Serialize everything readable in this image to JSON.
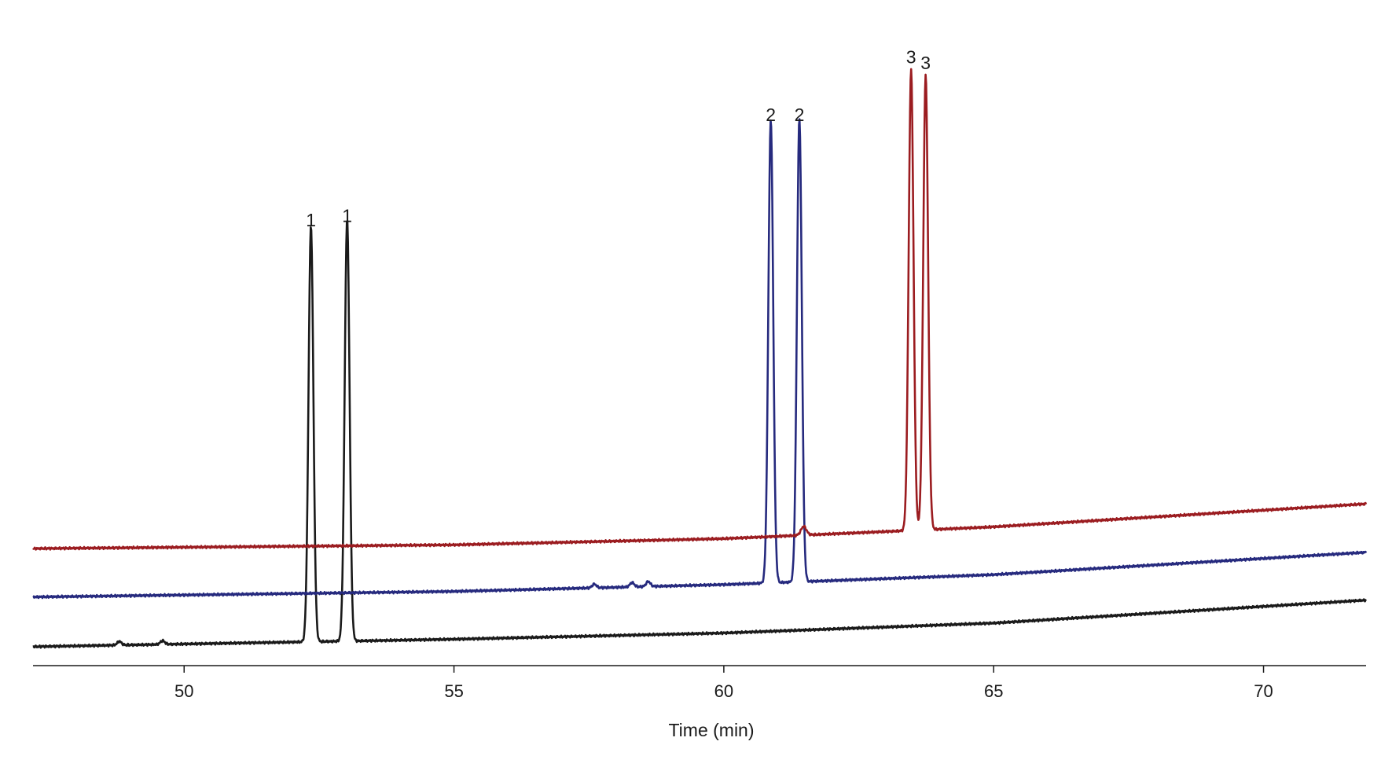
{
  "chart_data": {
    "type": "line",
    "title": "",
    "xlabel": "Time (min)",
    "ylabel": "",
    "xlim": [
      47.2,
      71.9
    ],
    "ylim": [
      0,
      1
    ],
    "x_ticks": [
      50,
      55,
      60,
      65,
      70
    ],
    "x_tick_labels": [
      "50",
      "55",
      "60",
      "65",
      "70"
    ],
    "grid": false,
    "legend": "none",
    "y_axis_shown": false,
    "series": [
      {
        "color": "#1a1a1a",
        "baseline": [
          [
            47.2,
            0.028
          ],
          [
            55.0,
            0.04
          ],
          [
            60.0,
            0.05
          ],
          [
            65.0,
            0.066
          ],
          [
            71.9,
            0.103
          ]
        ],
        "peaks": [
          {
            "rt": 52.35,
            "height": 0.67,
            "width": 0.045
          },
          {
            "rt": 53.02,
            "height": 0.68,
            "width": 0.045
          },
          {
            "rt": 48.8,
            "height": 0.006,
            "width": 0.04
          },
          {
            "rt": 49.6,
            "height": 0.006,
            "width": 0.04
          }
        ]
      },
      {
        "color": "#262a7e",
        "baseline": [
          [
            47.2,
            0.108
          ],
          [
            55.0,
            0.117
          ],
          [
            60.0,
            0.128
          ],
          [
            65.0,
            0.144
          ],
          [
            71.9,
            0.18
          ]
        ],
        "peaks": [
          {
            "rt": 60.87,
            "height": 0.746,
            "width": 0.045
          },
          {
            "rt": 61.4,
            "height": 0.746,
            "width": 0.045
          },
          {
            "rt": 57.6,
            "height": 0.006,
            "width": 0.04
          },
          {
            "rt": 58.3,
            "height": 0.007,
            "width": 0.04
          },
          {
            "rt": 58.6,
            "height": 0.008,
            "width": 0.04
          }
        ]
      },
      {
        "color": "#9b1c20",
        "baseline": [
          [
            47.2,
            0.186
          ],
          [
            55.0,
            0.192
          ],
          [
            60.0,
            0.202
          ],
          [
            65.0,
            0.221
          ],
          [
            71.9,
            0.258
          ]
        ],
        "peaks": [
          {
            "rt": 63.47,
            "height": 0.742,
            "width": 0.045
          },
          {
            "rt": 63.74,
            "height": 0.732,
            "width": 0.045
          },
          {
            "rt": 61.48,
            "height": 0.014,
            "width": 0.05
          }
        ]
      }
    ],
    "annotations": [
      {
        "text": "1",
        "x": 52.35,
        "y": 0.705
      },
      {
        "text": "1",
        "x": 53.02,
        "y": 0.712
      },
      {
        "text": "2",
        "x": 60.87,
        "y": 0.875
      },
      {
        "text": "2",
        "x": 61.4,
        "y": 0.875
      },
      {
        "text": "3",
        "x": 63.47,
        "y": 0.968
      },
      {
        "text": "3",
        "x": 63.74,
        "y": 0.958
      }
    ]
  }
}
